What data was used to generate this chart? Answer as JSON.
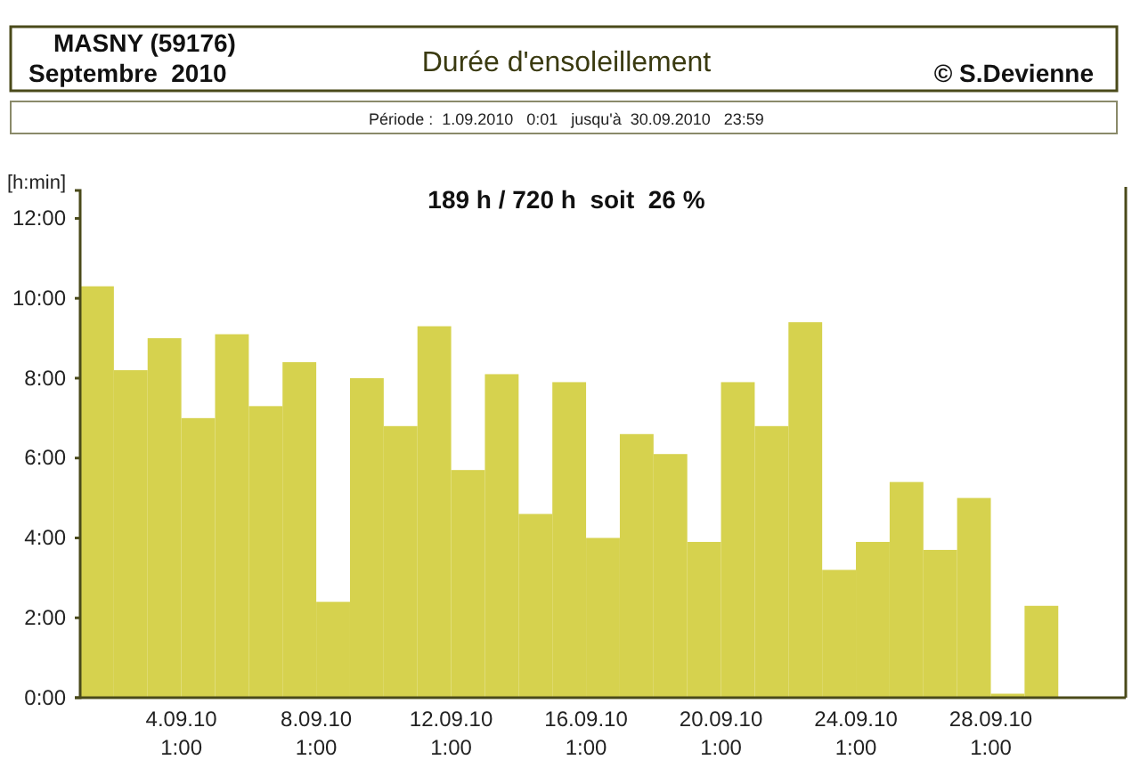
{
  "chart_data": {
    "type": "bar",
    "title": "Durée d'ensoleillement",
    "subtitle": "Période :  1.09.2010   0:01   jusqu'à  30.09.2010   23:59",
    "ylabel": "[h:min]",
    "annotations": [
      "MASNY (59176)",
      "Septembre  2010",
      "© S.Devienne",
      "189 h / 720 h  soit  26 %"
    ],
    "x": [
      "2010-09-01T12:00",
      "2010-09-02T12:00",
      "2010-09-03T12:00",
      "2010-09-04T12:00",
      "2010-09-05T12:00",
      "2010-09-06T12:00",
      "2010-09-07T12:00",
      "2010-09-08T12:00",
      "2010-09-09T12:00",
      "2010-09-10T12:00",
      "2010-09-11T12:00",
      "2010-09-12T12:00",
      "2010-09-13T12:00",
      "2010-09-14T12:00",
      "2010-09-15T12:00",
      "2010-09-16T12:00",
      "2010-09-17T12:00",
      "2010-09-18T12:00",
      "2010-09-19T12:00",
      "2010-09-20T12:00",
      "2010-09-21T12:00",
      "2010-09-22T12:00",
      "2010-09-23T12:00",
      "2010-09-24T12:00",
      "2010-09-25T12:00",
      "2010-09-26T12:00",
      "2010-09-27T12:00",
      "2010-09-28T12:00",
      "2010-09-29T12:00",
      "2010-09-30T12:00"
    ],
    "values": [
      10.3,
      8.2,
      9.0,
      7.0,
      9.1,
      7.3,
      8.4,
      2.4,
      8.0,
      6.8,
      9.3,
      5.7,
      8.1,
      4.6,
      7.9,
      4.0,
      6.6,
      6.1,
      3.9,
      7.9,
      6.8,
      9.4,
      3.2,
      3.9,
      5.4,
      3.7,
      5.0,
      0.1,
      2.3,
      0
    ],
    "color": "#d6d24e",
    "xlim": [
      "2010-09-01T00:00",
      "2010-10-02T00:00"
    ],
    "xticks": [
      {
        "value": "2010-09-04T00:00",
        "label": "4.09.10 1:00"
      },
      {
        "value": "2010-09-08T00:00",
        "label": "8.09.10 1:00"
      },
      {
        "value": "2010-09-12T00:00",
        "label": "12.09.10 1:00"
      },
      {
        "value": "2010-09-16T00:00",
        "label": "16.09.10 1:00"
      },
      {
        "value": "2010-09-20T00:00",
        "label": "20.09.10 1:00"
      },
      {
        "value": "2010-09-24T00:00",
        "label": "24.09.10 1:00"
      },
      {
        "value": "2010-09-28T00:00",
        "label": "28.09.10 1:00"
      }
    ],
    "ylim": [
      0,
      12.7
    ],
    "yticks": [
      {
        "value": 0,
        "label": "0:00"
      },
      {
        "value": 2,
        "label": "2:00"
      },
      {
        "value": 4,
        "label": "4:00"
      },
      {
        "value": 6,
        "label": "6:00"
      },
      {
        "value": 8,
        "label": "8:00"
      },
      {
        "value": 10,
        "label": "10:00"
      },
      {
        "value": 12,
        "label": "12:00"
      }
    ],
    "grid": false
  }
}
